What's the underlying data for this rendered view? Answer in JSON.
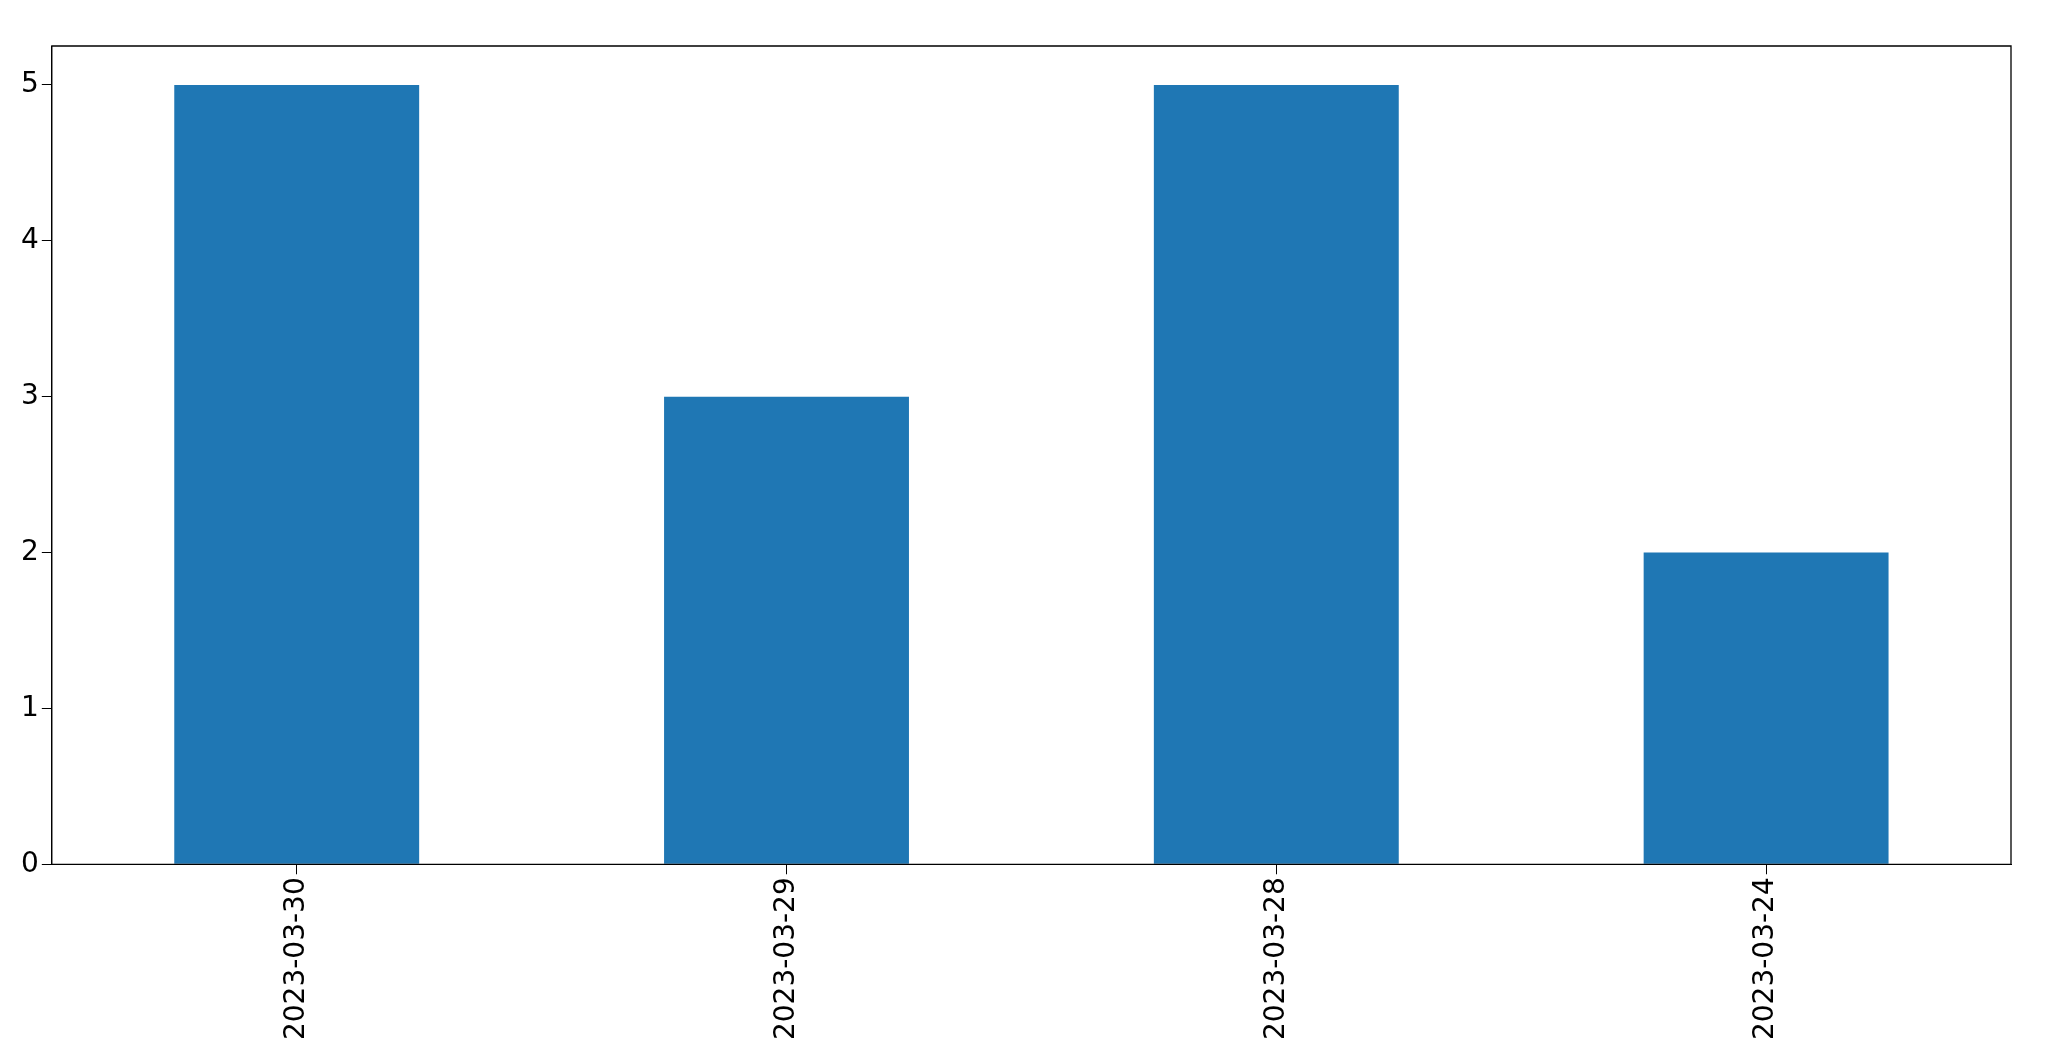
{
  "chart_data": {
    "type": "bar",
    "categories": [
      "2023-03-30",
      "2023-03-29",
      "2023-03-28",
      "2023-03-24"
    ],
    "values": [
      5,
      3,
      5,
      2
    ],
    "color": "#1f77b4",
    "ylim": [
      0,
      5.25
    ],
    "yticks": [
      0,
      1,
      2,
      3,
      4,
      5
    ],
    "grid": false,
    "legend": false
  }
}
